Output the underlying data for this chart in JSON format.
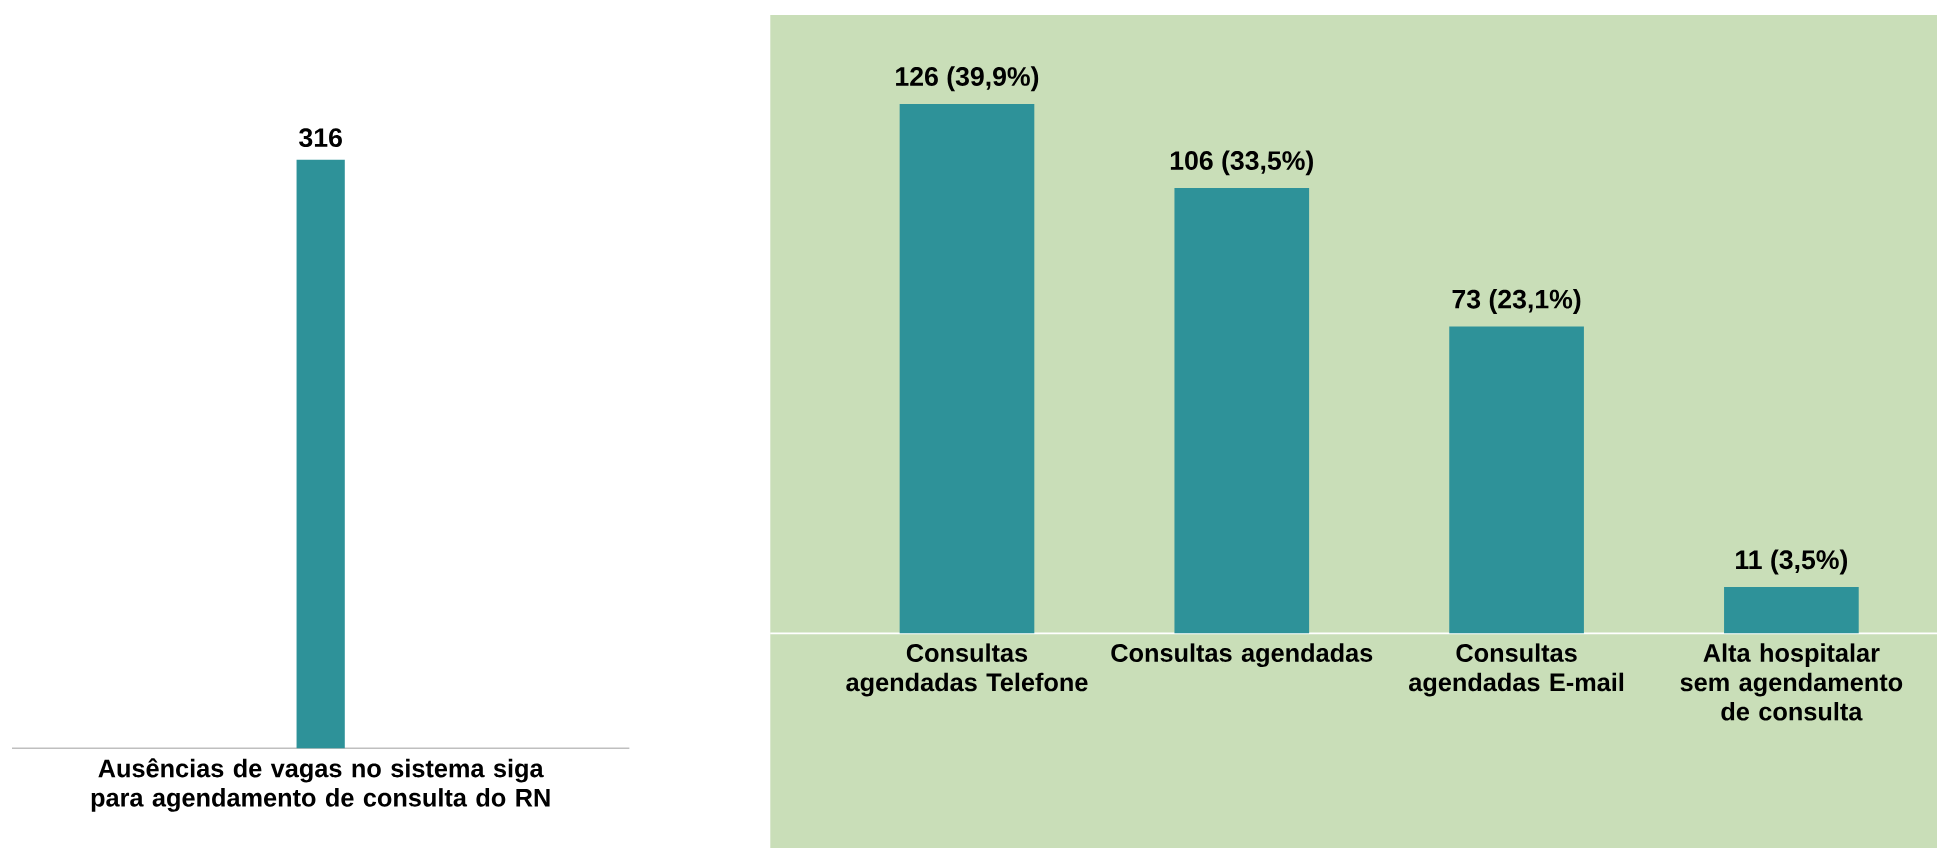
{
  "chart_data": [
    {
      "type": "bar",
      "categories": [
        "Ausências de vagas no sistema siga para agendamento de consulta do RN"
      ],
      "values": [
        316
      ],
      "color": "#2e9299",
      "value_labels": [
        "316"
      ]
    },
    {
      "type": "bar",
      "categories": [
        "Consultas agendadas Telefone",
        "Consultas agendadas",
        "Consultas agendadas E-mail",
        "Alta hospitalar sem agendamento de consulta"
      ],
      "values": [
        126,
        106,
        73,
        11
      ],
      "color": "#2e9299",
      "value_labels": [
        "126 (39,9%)",
        "106 (33,5%)",
        "73 (23,1%)",
        "11 (3,5%)"
      ]
    }
  ]
}
